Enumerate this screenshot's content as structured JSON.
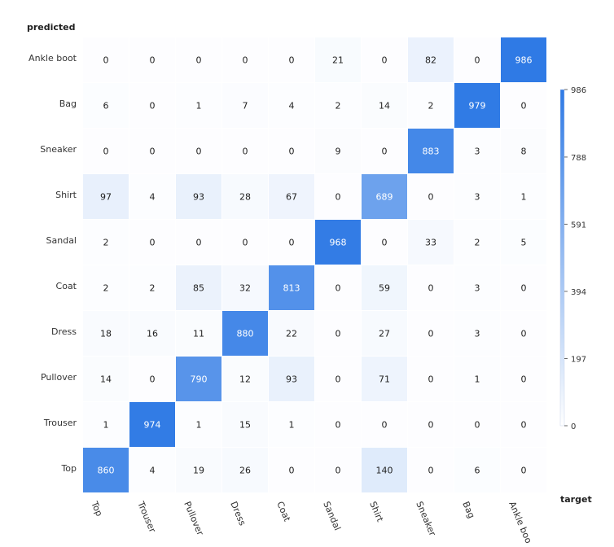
{
  "chart_data": {
    "type": "heatmap",
    "y_axis_title": "predicted",
    "x_axis_title": "target",
    "rows": [
      "Ankle boot",
      "Bag",
      "Sneaker",
      "Shirt",
      "Sandal",
      "Coat",
      "Dress",
      "Pullover",
      "Trouser",
      "Top"
    ],
    "columns": [
      "Top",
      "Trouser",
      "Pullover",
      "Dress",
      "Coat",
      "Sandal",
      "Shirt",
      "Sneaker",
      "Bag",
      "Ankle boot"
    ],
    "column_labels_shown": [
      "Top",
      "Trouser",
      "Pullover",
      "Dress",
      "Coat",
      "Sandal",
      "Shirt",
      "Sneaker",
      "Bag",
      "Ankle boo"
    ],
    "values": [
      [
        0,
        0,
        0,
        0,
        0,
        21,
        0,
        82,
        0,
        986
      ],
      [
        6,
        0,
        1,
        7,
        4,
        2,
        14,
        2,
        979,
        0
      ],
      [
        0,
        0,
        0,
        0,
        0,
        9,
        0,
        883,
        3,
        8
      ],
      [
        97,
        4,
        93,
        28,
        67,
        0,
        689,
        0,
        3,
        1
      ],
      [
        2,
        0,
        0,
        0,
        0,
        968,
        0,
        33,
        2,
        5
      ],
      [
        2,
        2,
        85,
        32,
        813,
        0,
        59,
        0,
        3,
        0
      ],
      [
        18,
        16,
        11,
        880,
        22,
        0,
        27,
        0,
        3,
        0
      ],
      [
        14,
        0,
        790,
        12,
        93,
        0,
        71,
        0,
        1,
        0
      ],
      [
        1,
        974,
        1,
        15,
        1,
        0,
        0,
        0,
        0,
        0
      ],
      [
        860,
        4,
        19,
        26,
        0,
        0,
        140,
        0,
        6,
        0
      ]
    ],
    "colorbar": {
      "ticks": [
        0,
        197,
        394,
        591,
        788,
        986
      ],
      "range": [
        0,
        986
      ],
      "color_low": "#ffffff",
      "color_high": "#2f7ae5"
    }
  }
}
